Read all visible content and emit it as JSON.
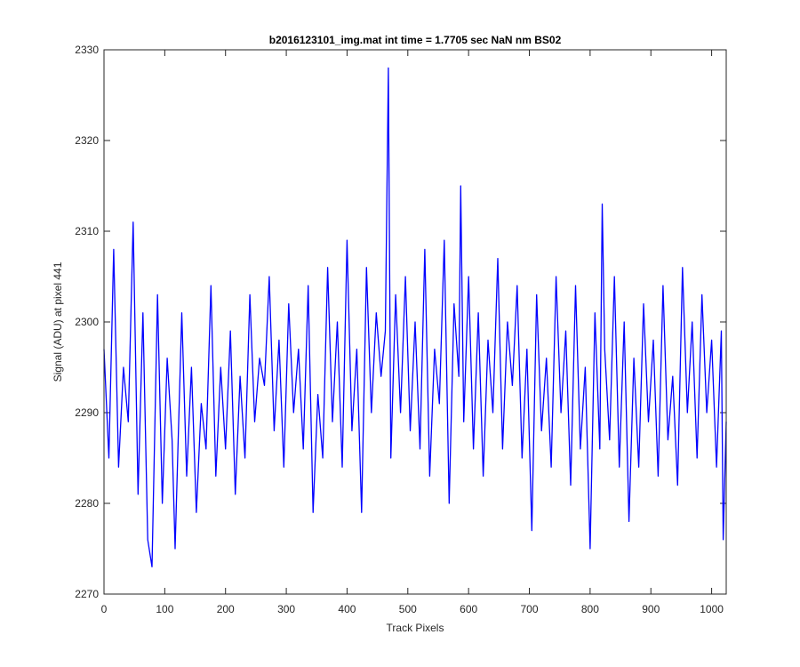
{
  "chart_data": {
    "type": "line",
    "title": "b2016123101_img.mat int time = 1.7705 sec  NaN nm BS02",
    "xlabel": "Track Pixels",
    "ylabel": "Signal (ADU) at pixel 441",
    "xlim": [
      0,
      1024
    ],
    "ylim": [
      2270,
      2330
    ],
    "xticks": [
      0,
      100,
      200,
      300,
      400,
      500,
      600,
      700,
      800,
      900,
      1000
    ],
    "yticks": [
      2270,
      2280,
      2290,
      2300,
      2310,
      2320,
      2330
    ],
    "grid": false,
    "legend": "none",
    "series": [
      {
        "color": "#0000ff",
        "x": [
          0,
          8,
          16,
          24,
          32,
          40,
          48,
          56,
          64,
          72,
          79,
          88,
          96,
          104,
          112,
          117,
          128,
          136,
          144,
          152,
          160,
          168,
          176,
          184,
          192,
          200,
          208,
          216,
          224,
          232,
          240,
          248,
          256,
          264,
          272,
          280,
          288,
          296,
          304,
          312,
          320,
          328,
          336,
          344,
          352,
          360,
          368,
          376,
          384,
          392,
          400,
          408,
          416,
          424,
          432,
          440,
          448,
          456,
          463,
          468,
          472,
          480,
          488,
          496,
          504,
          512,
          520,
          528,
          536,
          544,
          552,
          560,
          568,
          576,
          584,
          587,
          592,
          600,
          608,
          616,
          624,
          632,
          640,
          648,
          656,
          664,
          672,
          680,
          688,
          696,
          704,
          712,
          720,
          728,
          736,
          744,
          752,
          760,
          768,
          776,
          784,
          792,
          800,
          808,
          816,
          820,
          824,
          832,
          840,
          848,
          856,
          864,
          872,
          880,
          888,
          896,
          904,
          912,
          920,
          928,
          936,
          944,
          952,
          960,
          968,
          976,
          984,
          992,
          1000,
          1008,
          1016,
          1019,
          1024
        ],
        "y": [
          2297,
          2285,
          2308,
          2284,
          2295,
          2289,
          2311,
          2281,
          2301,
          2276,
          2273,
          2303,
          2280,
          2296,
          2287,
          2275,
          2301,
          2283,
          2295,
          2279,
          2291,
          2286,
          2304,
          2283,
          2295,
          2286,
          2299,
          2281,
          2294,
          2285,
          2303,
          2289,
          2296,
          2293,
          2305,
          2288,
          2298,
          2284,
          2302,
          2290,
          2297,
          2286,
          2304,
          2279,
          2292,
          2285,
          2306,
          2289,
          2300,
          2284,
          2309,
          2288,
          2297,
          2279,
          2306,
          2290,
          2301,
          2294,
          2299,
          2328,
          2285,
          2303,
          2290,
          2305,
          2288,
          2300,
          2286,
          2308,
          2283,
          2297,
          2291,
          2309,
          2280,
          2302,
          2294,
          2315,
          2289,
          2305,
          2286,
          2301,
          2283,
          2298,
          2290,
          2307,
          2286,
          2300,
          2293,
          2304,
          2285,
          2297,
          2277,
          2303,
          2288,
          2296,
          2284,
          2305,
          2290,
          2299,
          2282,
          2304,
          2286,
          2295,
          2275,
          2301,
          2286,
          2313,
          2297,
          2287,
          2305,
          2284,
          2300,
          2278,
          2296,
          2284,
          2302,
          2289,
          2298,
          2283,
          2304,
          2287,
          2294,
          2282,
          2306,
          2290,
          2300,
          2285,
          2303,
          2290,
          2298,
          2284,
          2299,
          2276,
          2289
        ]
      }
    ]
  }
}
